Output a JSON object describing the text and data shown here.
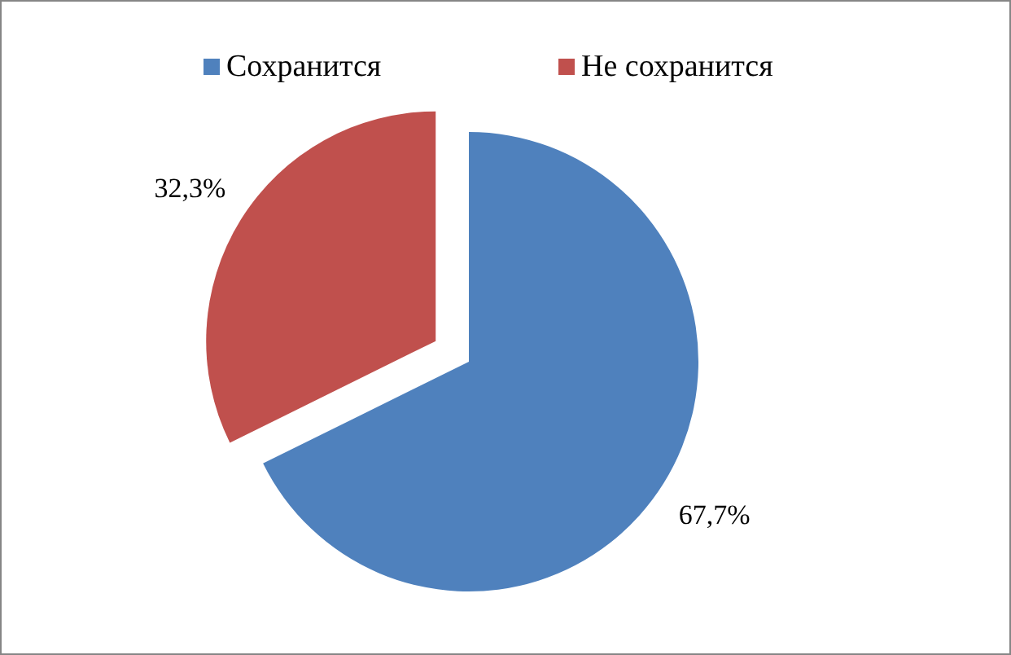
{
  "chart_data": {
    "type": "pie",
    "categories": [
      "Сохранится",
      "Не сохранится"
    ],
    "values": [
      67.7,
      32.3
    ],
    "colors": [
      "#4f81bd",
      "#c0504d"
    ],
    "value_labels": [
      "67,7%",
      "32,3%"
    ],
    "legend": "top"
  }
}
